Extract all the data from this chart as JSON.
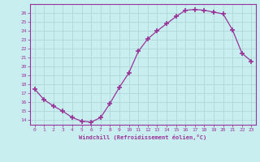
{
  "x": [
    0,
    1,
    2,
    3,
    4,
    5,
    6,
    7,
    8,
    9,
    10,
    11,
    12,
    13,
    14,
    15,
    16,
    17,
    18,
    19,
    20,
    21,
    22,
    23
  ],
  "y": [
    17.5,
    16.3,
    15.6,
    15.0,
    14.3,
    13.9,
    13.8,
    14.3,
    15.9,
    17.7,
    19.3,
    21.7,
    23.1,
    24.0,
    24.8,
    25.6,
    26.3,
    26.4,
    26.3,
    26.1,
    25.9,
    24.1,
    21.5,
    20.6
  ],
  "line_color": "#993399",
  "marker": "+",
  "bg_color": "#c8eef0",
  "grid_color": "#b0d8d8",
  "xlabel": "Windchill (Refroidissement éolien,°C)",
  "ylabel_ticks": [
    14,
    15,
    16,
    17,
    18,
    19,
    20,
    21,
    22,
    23,
    24,
    25,
    26
  ],
  "ylim": [
    13.5,
    27.0
  ],
  "xlim": [
    -0.5,
    23.5
  ],
  "xticks": [
    0,
    1,
    2,
    3,
    4,
    5,
    6,
    7,
    8,
    9,
    10,
    11,
    12,
    13,
    14,
    15,
    16,
    17,
    18,
    19,
    20,
    21,
    22,
    23
  ],
  "xtick_labels": [
    "0",
    "1",
    "2",
    "3",
    "4",
    "5",
    "6",
    "7",
    "8",
    "9",
    "10",
    "11",
    "12",
    "13",
    "14",
    "15",
    "16",
    "17",
    "18",
    "19",
    "20",
    "21",
    "22",
    "23"
  ]
}
